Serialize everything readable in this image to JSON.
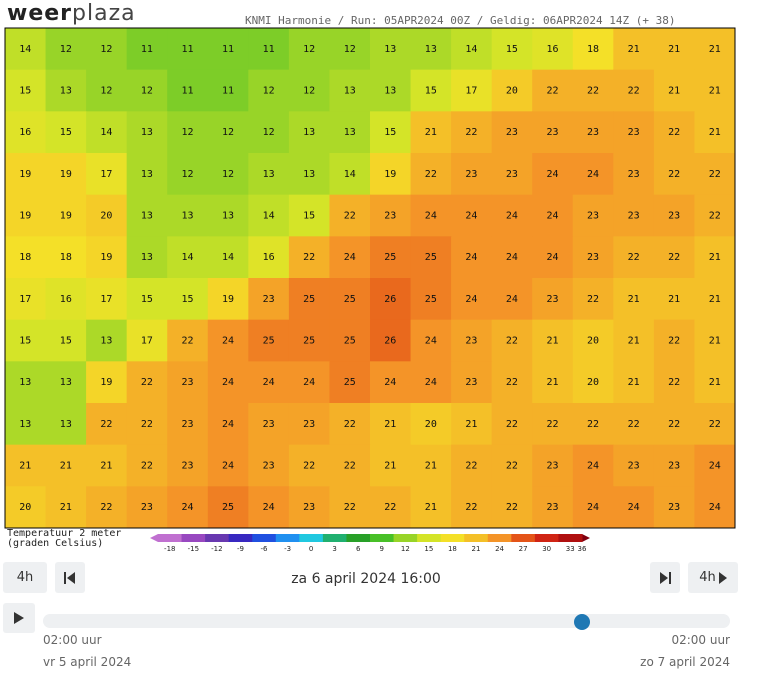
{
  "header": {
    "logo_left": "weer",
    "logo_right": "plaza",
    "run_info": "KNMI Harmonie / Run: 05APR2024 00Z / Geldig: 06APR2024 14Z (+ 38)"
  },
  "field": {
    "rows": [
      [
        14,
        12,
        12,
        11,
        11,
        11,
        11,
        12,
        12,
        13,
        13,
        14,
        15,
        16,
        18,
        21,
        21,
        21
      ],
      [
        15,
        13,
        12,
        12,
        11,
        11,
        12,
        12,
        13,
        13,
        15,
        17,
        20,
        22,
        22,
        22,
        21,
        21
      ],
      [
        16,
        15,
        14,
        13,
        12,
        12,
        12,
        13,
        13,
        15,
        21,
        22,
        23,
        23,
        23,
        23,
        22,
        21
      ],
      [
        19,
        19,
        17,
        13,
        12,
        12,
        13,
        13,
        14,
        19,
        22,
        23,
        23,
        24,
        24,
        23,
        22,
        22
      ],
      [
        19,
        19,
        20,
        13,
        13,
        13,
        14,
        15,
        22,
        23,
        24,
        24,
        24,
        24,
        23,
        23,
        23,
        22
      ],
      [
        18,
        18,
        19,
        13,
        14,
        14,
        16,
        22,
        24,
        25,
        25,
        24,
        24,
        24,
        23,
        22,
        22,
        21
      ],
      [
        17,
        16,
        17,
        15,
        15,
        19,
        23,
        25,
        25,
        26,
        25,
        24,
        24,
        23,
        22,
        21,
        21,
        21
      ],
      [
        15,
        15,
        13,
        17,
        22,
        24,
        25,
        25,
        25,
        26,
        24,
        23,
        22,
        21,
        20,
        21,
        22,
        21
      ],
      [
        13,
        13,
        19,
        22,
        23,
        24,
        24,
        24,
        25,
        24,
        24,
        23,
        22,
        21,
        20,
        21,
        22,
        21
      ],
      [
        13,
        13,
        22,
        22,
        23,
        24,
        23,
        23,
        22,
        21,
        20,
        21,
        22,
        22,
        22,
        22,
        22,
        22
      ],
      [
        21,
        21,
        21,
        22,
        23,
        24,
        23,
        22,
        22,
        21,
        21,
        22,
        22,
        23,
        24,
        23,
        23,
        24
      ],
      [
        20,
        21,
        22,
        23,
        24,
        25,
        24,
        23,
        22,
        22,
        21,
        22,
        22,
        23,
        24,
        24,
        23,
        24
      ]
    ]
  },
  "legend": {
    "title_line1": "Temperatuur 2 meter",
    "title_line2": "(graden Celsius)",
    "ticks": [
      -18,
      -15,
      -12,
      -9,
      -6,
      -3,
      0,
      3,
      6,
      9,
      12,
      15,
      18,
      21,
      24,
      27,
      30,
      33,
      36
    ],
    "colors": [
      "#c070d0",
      "#9848c0",
      "#6838b0",
      "#3828c0",
      "#2050e0",
      "#2090f0",
      "#20c8e0",
      "#20b070",
      "#28a028",
      "#48c028",
      "#98d428",
      "#d4e428",
      "#f4e028",
      "#f4c028",
      "#f49428",
      "#e45418",
      "#d02414",
      "#b01010",
      "#800010"
    ]
  },
  "controls": {
    "step_back": "4h",
    "current_time": "za 6 april 2024 16:00",
    "step_forward": "4h",
    "start_time": "02:00 uur",
    "start_date": "vr 5 april 2024",
    "end_time": "02:00 uur",
    "end_date": "zo 7 april 2024"
  }
}
